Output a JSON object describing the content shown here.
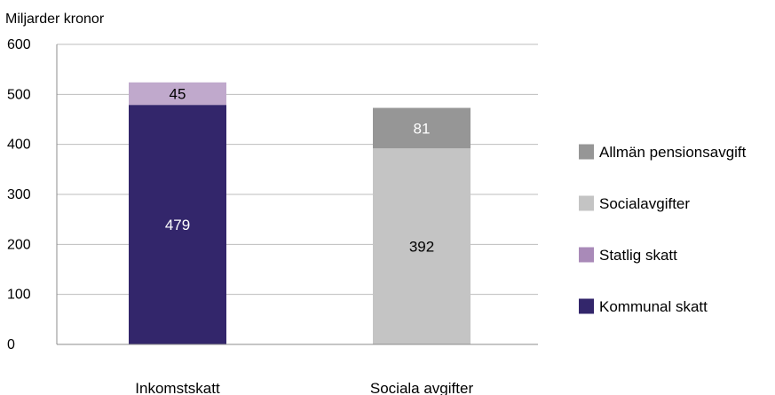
{
  "chart_data": {
    "type": "bar",
    "stacked": true,
    "title": "",
    "xlabel": "",
    "ylabel": "Miljarder kronor",
    "ylim": [
      0,
      600
    ],
    "yticks": [
      0,
      100,
      200,
      300,
      400,
      500,
      600
    ],
    "ytick_labels": [
      "0",
      "100",
      "200",
      "300",
      "400",
      "500",
      "600"
    ],
    "grid": true,
    "legend_position": "right",
    "categories": [
      "Inkomstskatt",
      "Sociala avgifter"
    ],
    "series": [
      {
        "name": "Kommunal skatt",
        "color": "#33266b",
        "label_color": "#ffffff",
        "values": [
          479,
          0
        ]
      },
      {
        "name": "Statlig skatt",
        "color": "#c0a9cc",
        "label_color": "#000000",
        "values": [
          45,
          0
        ]
      },
      {
        "name": "Socialavgifter",
        "color": "#c4c4c4",
        "label_color": "#000000",
        "values": [
          0,
          392
        ]
      },
      {
        "name": "Allmän pensionsavgift",
        "color": "#969696",
        "label_color": "#ffffff",
        "values": [
          0,
          81
        ]
      }
    ],
    "legend_order": [
      "Allmän pensionsavgift",
      "Socialavgifter",
      "Statlig skatt",
      "Kommunal skatt"
    ],
    "legend_colors": {
      "Allmän pensionsavgift": "#969696",
      "Socialavgifter": "#c4c4c4",
      "Statlig skatt": "#a98ab8",
      "Kommunal skatt": "#33266b"
    }
  },
  "colors": {
    "grid": "#bdbdbd",
    "axis": "#8c8c8c",
    "text": "#000000"
  }
}
